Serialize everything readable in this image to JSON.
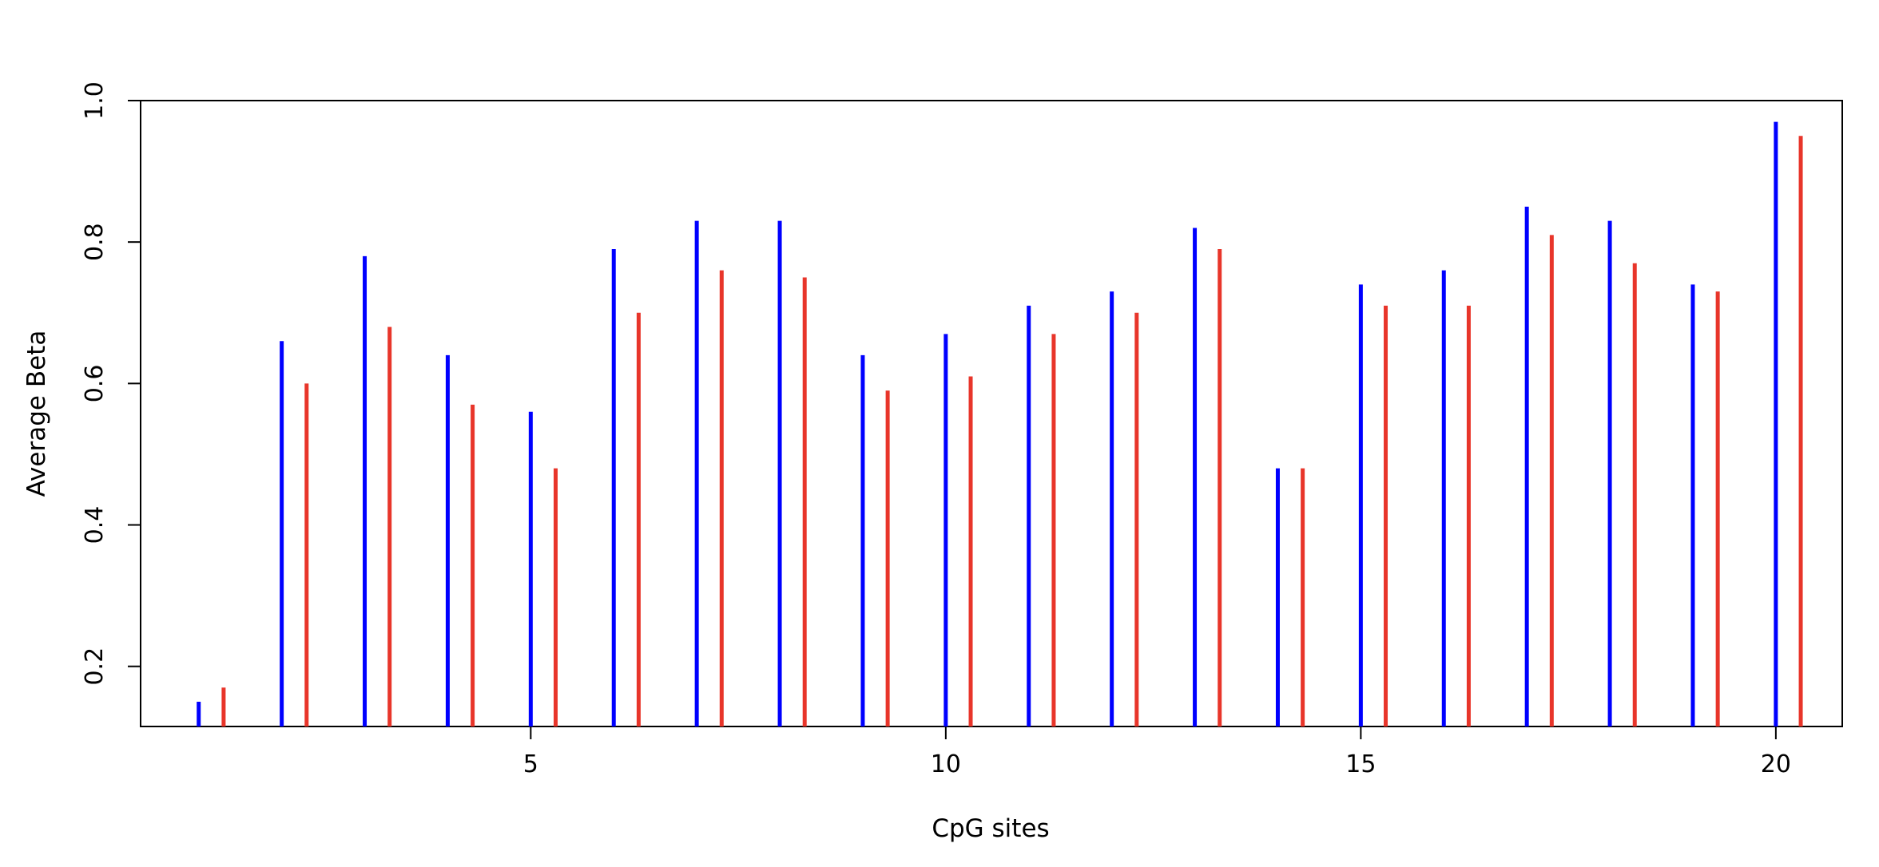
{
  "chart_data": {
    "type": "bar",
    "title": "",
    "xlabel": "CpG sites",
    "ylabel": "Average Beta",
    "x": [
      1,
      2,
      3,
      4,
      5,
      6,
      7,
      8,
      9,
      10,
      11,
      12,
      13,
      14,
      15,
      16,
      17,
      18,
      19,
      20
    ],
    "xlim": [
      0.3,
      20.8
    ],
    "ylim": [
      0.115,
      1.0
    ],
    "xticks": [
      5,
      10,
      15,
      20
    ],
    "yticks": [
      0.2,
      0.4,
      0.6,
      0.8,
      1.0
    ],
    "ytick_labels": [
      "0.2",
      "0.4",
      "0.6",
      "0.8",
      "1.0"
    ],
    "grid": false,
    "legend": "none",
    "series": [
      {
        "color": "#0000ff",
        "values": [
          0.15,
          0.66,
          0.78,
          0.64,
          0.56,
          0.79,
          0.83,
          0.83,
          0.64,
          0.67,
          0.71,
          0.73,
          0.82,
          0.48,
          0.74,
          0.76,
          0.85,
          0.83,
          0.74,
          0.97
        ]
      },
      {
        "color": "#e8352a",
        "values": [
          0.17,
          0.6,
          0.68,
          0.57,
          0.48,
          0.7,
          0.76,
          0.75,
          0.59,
          0.61,
          0.67,
          0.7,
          0.79,
          0.48,
          0.71,
          0.71,
          0.81,
          0.77,
          0.73,
          0.95
        ]
      }
    ]
  }
}
